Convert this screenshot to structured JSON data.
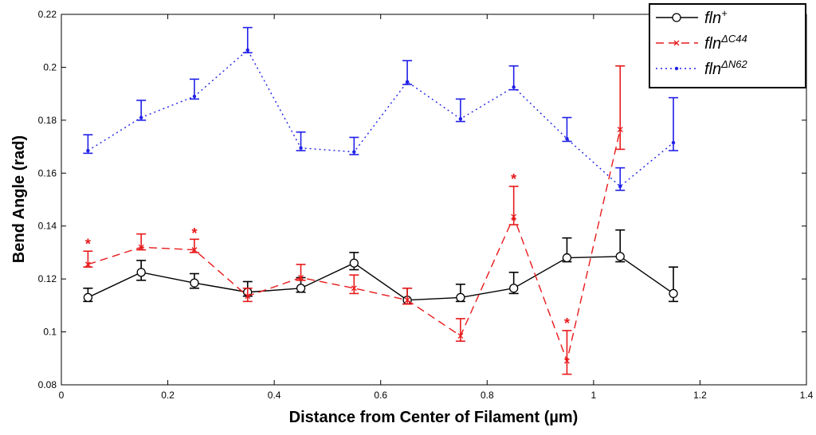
{
  "chart_data": {
    "type": "line",
    "xlabel": "Distance from Center of Filament (µm)",
    "ylabel": "Bend Angle (rad)",
    "xlim": [
      0,
      1.4
    ],
    "ylim": [
      0.08,
      0.22
    ],
    "xticks": [
      0,
      0.2,
      0.4,
      0.6,
      0.8,
      1,
      1.2,
      1.4
    ],
    "xtick_labels": [
      "0",
      "0.2",
      "0.4",
      "0.6",
      "0.8",
      "1",
      "1.2",
      "1.4"
    ],
    "yticks": [
      0.08,
      0.1,
      0.12,
      0.14,
      0.16,
      0.18,
      0.2,
      0.22
    ],
    "ytick_labels": [
      "0.08",
      "0.1",
      "0.12",
      "0.14",
      "0.16",
      "0.18",
      "0.2",
      "0.22"
    ],
    "grid": false,
    "legend_position": "top-right",
    "series": [
      {
        "name": "fln+",
        "legend_base": "fln",
        "legend_sup": "+",
        "color": "#000000",
        "line_style": "solid",
        "marker": "circle",
        "x": [
          0.05,
          0.15,
          0.25,
          0.35,
          0.45,
          0.55,
          0.65,
          0.75,
          0.85,
          0.95,
          1.05,
          1.15
        ],
        "y": [
          0.113,
          0.1225,
          0.1185,
          0.115,
          0.1165,
          0.126,
          0.112,
          0.113,
          0.1165,
          0.128,
          0.1285,
          0.1145
        ],
        "err_low": [
          0.1115,
          0.1195,
          0.1165,
          0.1135,
          0.115,
          0.1235,
          0.1105,
          0.1115,
          0.1145,
          0.1265,
          0.1265,
          0.1115
        ],
        "err_high": [
          0.1165,
          0.127,
          0.122,
          0.119,
          0.1205,
          0.13,
          0.1165,
          0.118,
          0.1225,
          0.1355,
          0.1385,
          0.1245
        ]
      },
      {
        "name": "flnΔC44",
        "legend_base": "fln",
        "legend_sup": "ΔC44",
        "color": "#e8191b",
        "line_style": "dashed",
        "marker": "x",
        "x": [
          0.05,
          0.15,
          0.25,
          0.35,
          0.45,
          0.55,
          0.65,
          0.75,
          0.85,
          0.95,
          1.05
        ],
        "y": [
          0.1255,
          0.132,
          0.131,
          0.1135,
          0.1205,
          0.1165,
          0.112,
          0.0985,
          0.1435,
          0.089,
          0.1765
        ],
        "err_low": [
          0.1245,
          0.131,
          0.13,
          0.1115,
          0.1195,
          0.1145,
          0.1105,
          0.0965,
          0.1405,
          0.084,
          0.169
        ],
        "err_high": [
          0.1305,
          0.137,
          0.135,
          0.1165,
          0.1255,
          0.1215,
          0.1165,
          0.105,
          0.155,
          0.1005,
          0.2005
        ]
      },
      {
        "name": "flnΔN62",
        "legend_base": "fln",
        "legend_sup": "ΔN62",
        "color": "#2020e8",
        "line_style": "dotted",
        "marker": "dot",
        "x": [
          0.05,
          0.15,
          0.25,
          0.35,
          0.45,
          0.55,
          0.65,
          0.75,
          0.85,
          0.95,
          1.05,
          1.15
        ],
        "y": [
          0.1685,
          0.181,
          0.189,
          0.2065,
          0.1695,
          0.168,
          0.1945,
          0.1805,
          0.1925,
          0.173,
          0.155,
          0.1715
        ],
        "err_low": [
          0.1675,
          0.18,
          0.188,
          0.2055,
          0.1685,
          0.167,
          0.1935,
          0.1795,
          0.1915,
          0.172,
          0.1535,
          0.1685
        ],
        "err_high": [
          0.1745,
          0.1875,
          0.1955,
          0.215,
          0.1755,
          0.1735,
          0.2025,
          0.188,
          0.2005,
          0.181,
          0.162,
          0.1885
        ]
      }
    ],
    "annotations": [
      {
        "text": "*",
        "x": 0.05,
        "y": 0.1335,
        "color": "#e8191b"
      },
      {
        "text": "*",
        "x": 0.25,
        "y": 0.1375,
        "color": "#e8191b"
      },
      {
        "text": "*",
        "x": 0.85,
        "y": 0.158,
        "color": "#e8191b"
      },
      {
        "text": "*",
        "x": 0.95,
        "y": 0.1035,
        "color": "#e8191b"
      }
    ]
  }
}
